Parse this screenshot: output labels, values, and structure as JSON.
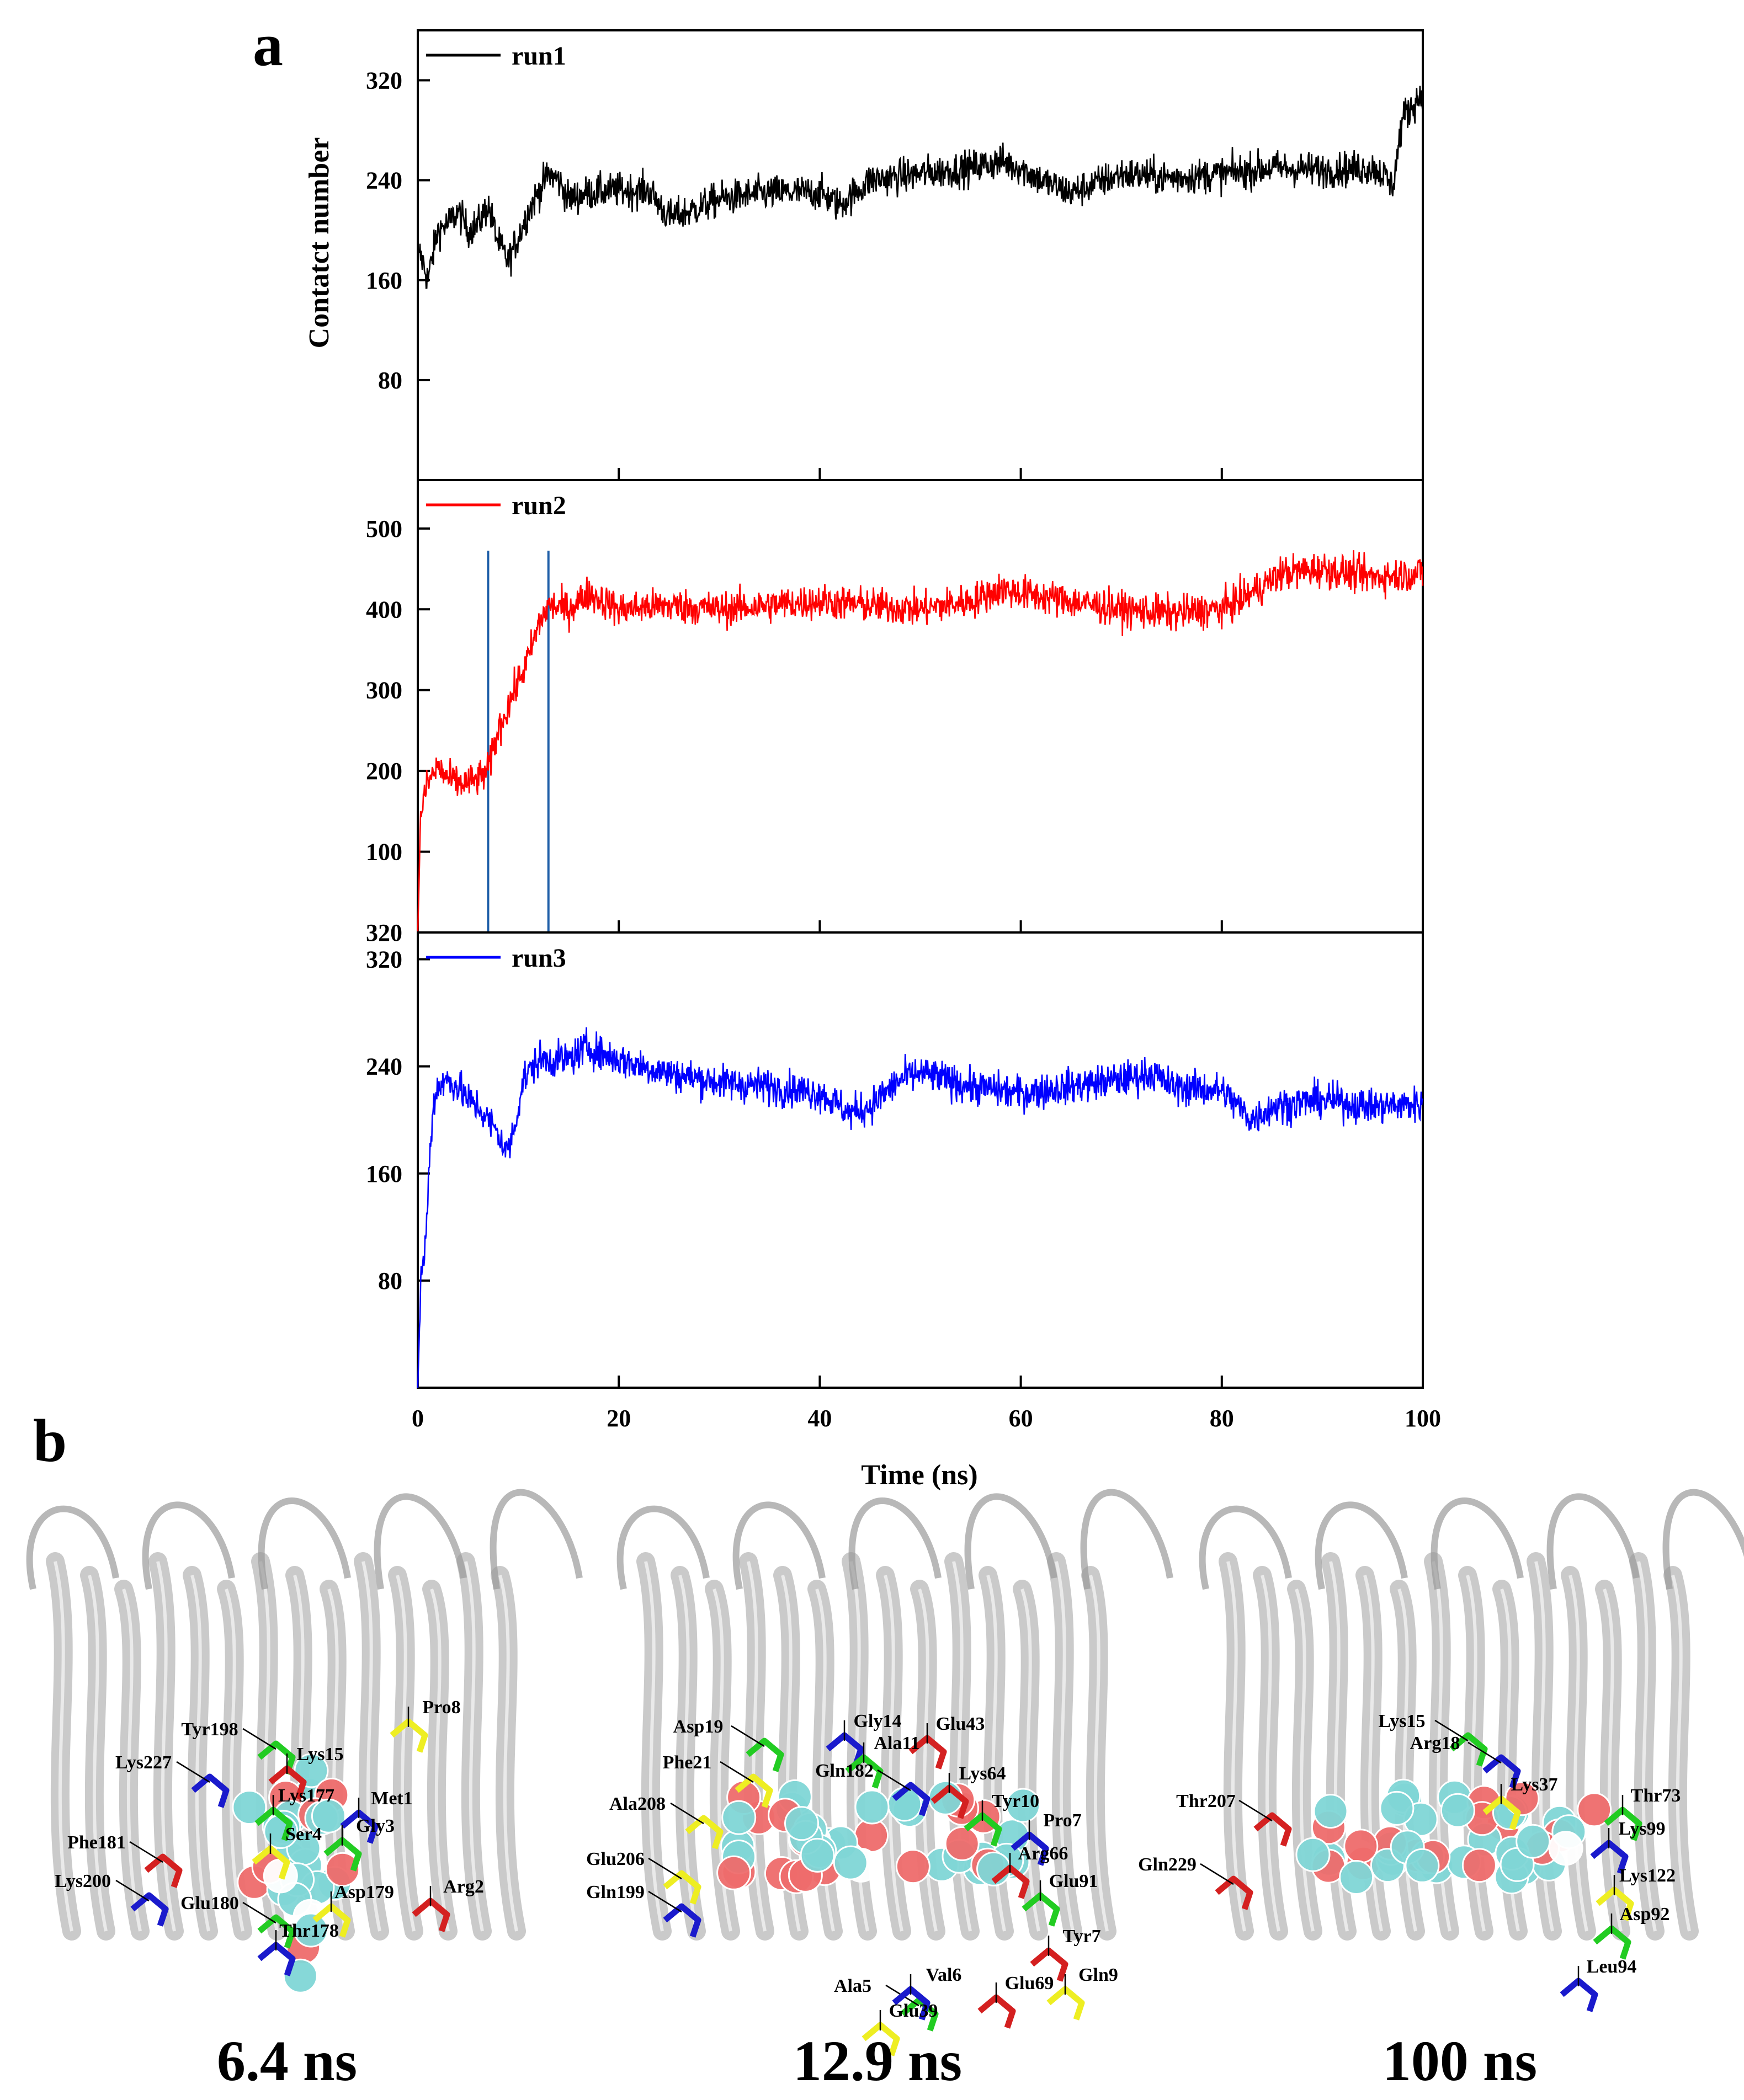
{
  "panel_a": {
    "letter": "a"
  },
  "panel_b": {
    "letter": "b"
  },
  "chart_data": [
    {
      "type": "line",
      "series": [
        {
          "name": "run1",
          "color": "#000000",
          "anchors": [
            [
              0,
              185
            ],
            [
              0.5,
              175
            ],
            [
              1,
              160
            ],
            [
              1.5,
              180
            ],
            [
              2,
              200
            ],
            [
              3,
              205
            ],
            [
              4,
              215
            ],
            [
              5,
              200
            ],
            [
              6,
              205
            ],
            [
              7,
              220
            ],
            [
              8,
              190
            ],
            [
              9,
              175
            ],
            [
              10,
              195
            ],
            [
              11,
              215
            ],
            [
              12,
              230
            ],
            [
              13,
              245
            ],
            [
              14,
              240
            ],
            [
              15,
              225
            ],
            [
              17,
              230
            ],
            [
              20,
              232
            ],
            [
              23,
              232
            ],
            [
              25,
              210
            ],
            [
              27,
              215
            ],
            [
              30,
              225
            ],
            [
              35,
              230
            ],
            [
              40,
              230
            ],
            [
              42,
              220
            ],
            [
              45,
              240
            ],
            [
              50,
              245
            ],
            [
              55,
              250
            ],
            [
              58,
              255
            ],
            [
              60,
              250
            ],
            [
              62,
              240
            ],
            [
              65,
              230
            ],
            [
              70,
              245
            ],
            [
              75,
              242
            ],
            [
              80,
              245
            ],
            [
              85,
              250
            ],
            [
              90,
              248
            ],
            [
              95,
              250
            ],
            [
              96,
              245
            ],
            [
              97,
              235
            ],
            [
              98,
              290
            ],
            [
              99,
              300
            ],
            [
              100,
              310
            ]
          ]
        }
      ],
      "title": "",
      "xlabel": "Time (ns)",
      "ylabel": "Contatct number",
      "xlim": [
        0,
        100
      ],
      "ylim": [
        0,
        360
      ],
      "yticks": [
        80,
        160,
        240,
        320
      ],
      "xticks": [
        0,
        20,
        40,
        60,
        80,
        100
      ]
    },
    {
      "type": "line",
      "series": [
        {
          "name": "run2",
          "color": "#ff0000",
          "anchors": [
            [
              0,
              0
            ],
            [
              0.3,
              150
            ],
            [
              1,
              185
            ],
            [
              2,
              205
            ],
            [
              3,
              190
            ],
            [
              4,
              185
            ],
            [
              5,
              185
            ],
            [
              6,
              190
            ],
            [
              7,
              200
            ],
            [
              8,
              250
            ],
            [
              9,
              280
            ],
            [
              10,
              310
            ],
            [
              11,
              340
            ],
            [
              12,
              380
            ],
            [
              13,
              405
            ],
            [
              15,
              400
            ],
            [
              17,
              420
            ],
            [
              20,
              400
            ],
            [
              25,
              405
            ],
            [
              30,
              400
            ],
            [
              35,
              405
            ],
            [
              40,
              410
            ],
            [
              45,
              405
            ],
            [
              50,
              400
            ],
            [
              55,
              410
            ],
            [
              58,
              425
            ],
            [
              60,
              420
            ],
            [
              65,
              410
            ],
            [
              70,
              400
            ],
            [
              75,
              395
            ],
            [
              80,
              400
            ],
            [
              83,
              420
            ],
            [
              86,
              445
            ],
            [
              90,
              450
            ],
            [
              95,
              440
            ],
            [
              100,
              445
            ]
          ]
        }
      ],
      "markers": [
        7,
        13
      ],
      "title": "",
      "xlabel": "Time (ns)",
      "ylabel": "Contatct number",
      "xlim": [
        0,
        100
      ],
      "ylim": [
        0,
        560
      ],
      "yticks": [
        100,
        200,
        300,
        400,
        500
      ],
      "xticks": [
        0,
        20,
        40,
        60,
        80,
        100
      ]
    },
    {
      "type": "line",
      "series": [
        {
          "name": "run3",
          "color": "#0000ff",
          "anchors": [
            [
              0,
              0
            ],
            [
              0.3,
              80
            ],
            [
              0.8,
              110
            ],
            [
              1.2,
              175
            ],
            [
              1.6,
              215
            ],
            [
              2,
              225
            ],
            [
              3,
              230
            ],
            [
              4,
              225
            ],
            [
              5,
              215
            ],
            [
              6,
              210
            ],
            [
              7,
              200
            ],
            [
              8,
              190
            ],
            [
              8.8,
              175
            ],
            [
              9.5,
              190
            ],
            [
              10.5,
              230
            ],
            [
              12,
              245
            ],
            [
              15,
              245
            ],
            [
              17,
              255
            ],
            [
              18,
              250
            ],
            [
              20,
              245
            ],
            [
              25,
              235
            ],
            [
              30,
              228
            ],
            [
              35,
              225
            ],
            [
              40,
              220
            ],
            [
              43,
              205
            ],
            [
              45,
              210
            ],
            [
              48,
              230
            ],
            [
              50,
              235
            ],
            [
              55,
              225
            ],
            [
              60,
              220
            ],
            [
              65,
              225
            ],
            [
              70,
              230
            ],
            [
              73,
              235
            ],
            [
              75,
              225
            ],
            [
              80,
              222
            ],
            [
              83,
              200
            ],
            [
              85,
              210
            ],
            [
              90,
              215
            ],
            [
              95,
              210
            ],
            [
              100,
              212
            ]
          ]
        }
      ],
      "title": "",
      "xlabel": "Time (ns)",
      "ylabel": "Contatct number",
      "xlim": [
        0,
        100
      ],
      "ylim": [
        0,
        340
      ],
      "ytick_labels": [
        "80",
        "160",
        "240",
        "320"
      ],
      "yticks": [
        80,
        160,
        240,
        320
      ],
      "xticks": [
        0,
        20,
        40,
        60,
        80,
        100
      ]
    }
  ],
  "structures": [
    {
      "time": "6.4 ns",
      "residues": [
        "Tyr198",
        "Lys227",
        "Lys15",
        "Pro8",
        "Lys177",
        "Met1",
        "Phe181",
        "Ser4",
        "Gly3",
        "Lys200",
        "Arg2",
        "Asp179",
        "Glu180",
        "Thr178"
      ]
    },
    {
      "time": "12.9 ns",
      "residues": [
        "Asp19",
        "Gly14",
        "Glu43",
        "Phe21",
        "Ala11",
        "Gln182",
        "Lys64",
        "Ala208",
        "Tyr10",
        "Pro7",
        "Arg66",
        "Glu206",
        "Glu91",
        "Gln199",
        "Tyr7",
        "Gln9",
        "Ala5",
        "Val6",
        "Glu69",
        "Glu39"
      ]
    },
    {
      "time": "100 ns",
      "residues": [
        "Lys15",
        "Arg18",
        "Thr207",
        "Lys37",
        "Thr73",
        "Lys99",
        "Gln229",
        "Lys122",
        "Asp92",
        "Leu94"
      ]
    }
  ],
  "colors": {
    "axis": "#000000",
    "marker_line": "#1f5fa8",
    "protein": "#b8b8b8",
    "ligand_cyan": "#7fd6d6",
    "ligand_red": "#ee6b6b",
    "res_green": "#22cc22",
    "res_blue": "#1a1acc",
    "res_red": "#d42020",
    "res_yellow": "#eeee22"
  }
}
